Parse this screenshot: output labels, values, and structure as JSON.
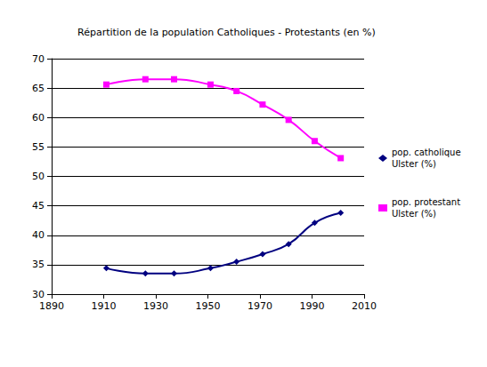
{
  "chart_data": {
    "type": "line",
    "title": "Répartition de la population Catholiques - Protestants (en %)",
    "x": [
      1911,
      1926,
      1937,
      1951,
      1961,
      1971,
      1981,
      1991,
      2001
    ],
    "series": [
      {
        "name": "pop. catholique Ulster (%)",
        "color": "#000080",
        "marker": "diamond",
        "values": [
          34.4,
          33.5,
          33.5,
          34.4,
          35.5,
          36.8,
          38.5,
          42.1,
          43.8
        ]
      },
      {
        "name": "pop. protestant Ulster (%)",
        "color": "#ff00ff",
        "marker": "square",
        "values": [
          65.6,
          66.5,
          66.5,
          65.6,
          64.5,
          62.2,
          59.6,
          56.0,
          53.1
        ]
      }
    ],
    "xlim": [
      1890,
      2010
    ],
    "xticks": [
      1890,
      1910,
      1930,
      1950,
      1970,
      1990,
      2010
    ],
    "ylim": [
      30,
      70
    ],
    "yticks": [
      30,
      35,
      40,
      45,
      50,
      55,
      60,
      65,
      70
    ],
    "grid": true,
    "legend": "right"
  }
}
